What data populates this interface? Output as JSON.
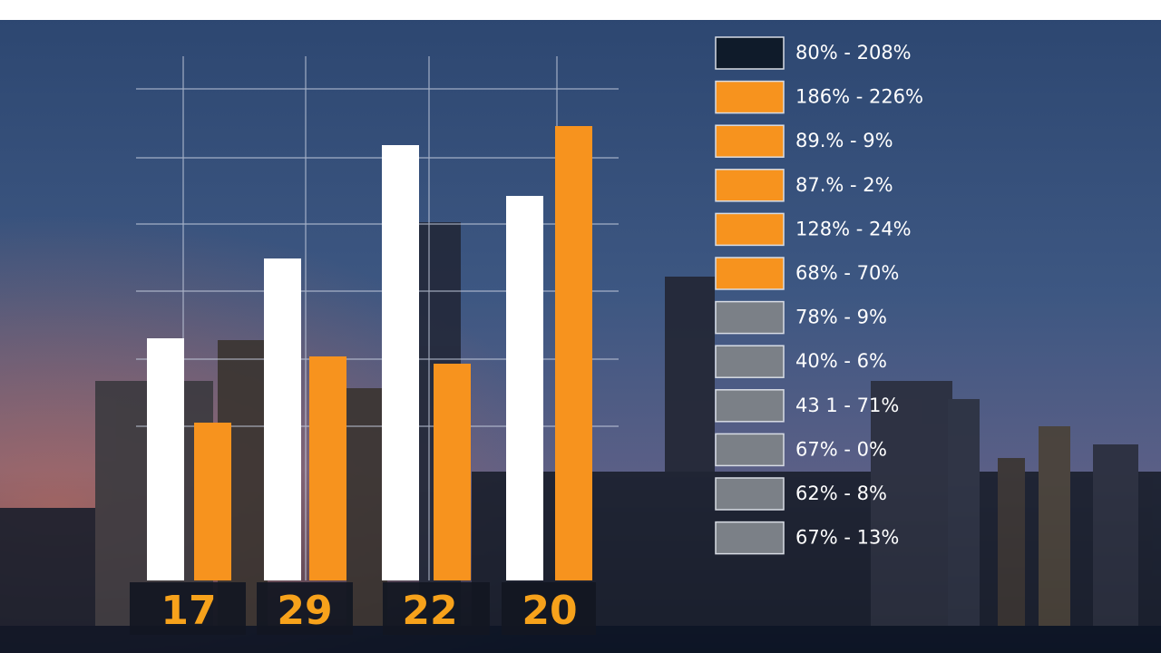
{
  "chart_data": {
    "type": "bar",
    "categories": [
      "17",
      "29",
      "22",
      "20"
    ],
    "series": [
      {
        "color": "#ffffff",
        "values": [
          267,
          355,
          480,
          424
        ]
      },
      {
        "color": "#f7931e",
        "values": [
          174,
          247,
          239,
          501
        ]
      }
    ],
    "ylim": [
      0,
      550
    ],
    "legend": [
      {
        "label": "80% - 208%",
        "color": "#0f1b2a"
      },
      {
        "label": "186% - 226%",
        "color": "#f7931e"
      },
      {
        "label": "89.% - 9%",
        "color": "#f7931e"
      },
      {
        "label": "87.% - 2%",
        "color": "#f7931e"
      },
      {
        "label": "128% - 24%",
        "color": "#f7931e"
      },
      {
        "label": "68% - 70%",
        "color": "#f7931e"
      },
      {
        "label": "78% - 9%",
        "color": "#7b8087"
      },
      {
        "label": "40% - 6%",
        "color": "#7b8087"
      },
      {
        "label": "43 1 - 71%",
        "color": "#7b8087"
      },
      {
        "label": "67% - 0%",
        "color": "#7b8087"
      },
      {
        "label": "62% - 8%",
        "color": "#7b8087"
      },
      {
        "label": "67% - 13%",
        "color": "#7b8087"
      }
    ]
  }
}
